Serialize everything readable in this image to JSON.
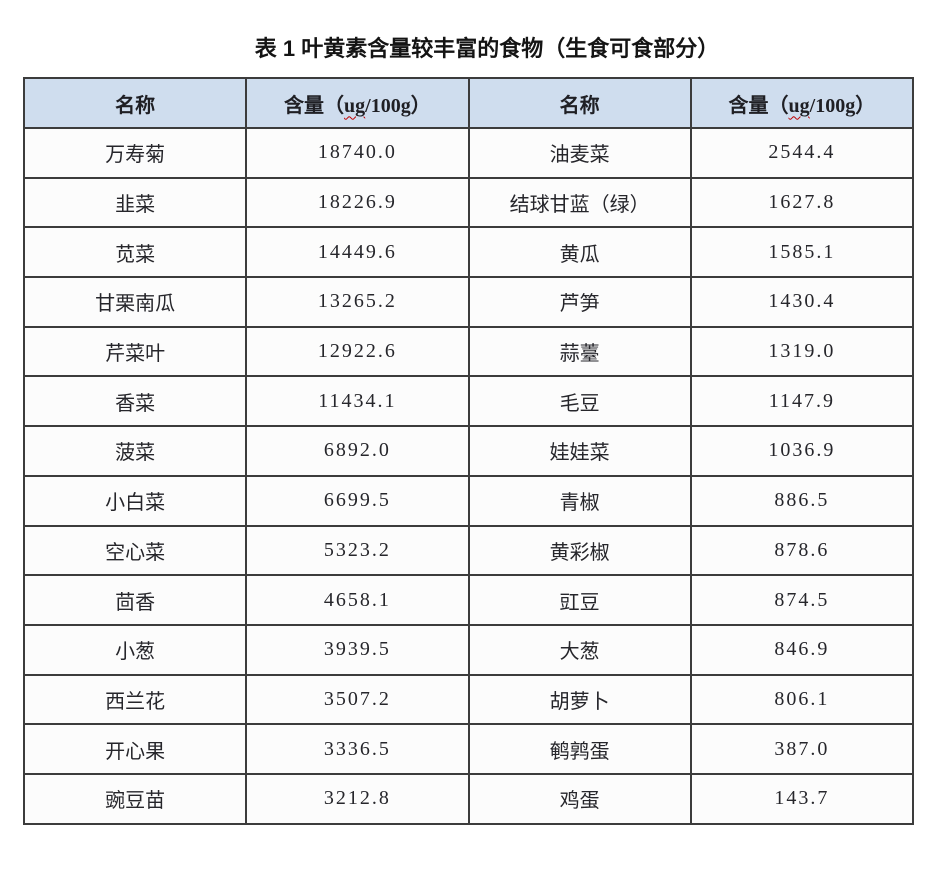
{
  "title": "表 1 叶黄素含量较丰富的食物（生食可食部分）",
  "colors": {
    "header_bg": "#cfddee",
    "cell_bg": "#fcfcfc",
    "border": "#3c3c3c",
    "title_text": "#141414",
    "cell_text": "#26262b",
    "squiggle_red": "#c00000"
  },
  "table": {
    "name_header": "名称",
    "content_header": {
      "prefix": "含量（",
      "unit": "ug",
      "suffix": "/100g）"
    },
    "rows": [
      [
        "万寿菊",
        "18740.0",
        "油麦菜",
        "2544.4"
      ],
      [
        "韭菜",
        "18226.9",
        "结球甘蓝（绿）",
        "1627.8"
      ],
      [
        "苋菜",
        "14449.6",
        "黄瓜",
        "1585.1"
      ],
      [
        "甘栗南瓜",
        "13265.2",
        "芦笋",
        "1430.4"
      ],
      [
        "芹菜叶",
        "12922.6",
        "蒜薹",
        "1319.0"
      ],
      [
        "香菜",
        "11434.1",
        "毛豆",
        "1147.9"
      ],
      [
        "菠菜",
        "6892.0",
        "娃娃菜",
        "1036.9"
      ],
      [
        "小白菜",
        "6699.5",
        "青椒",
        "886.5"
      ],
      [
        "空心菜",
        "5323.2",
        "黄彩椒",
        "878.6"
      ],
      [
        "茴香",
        "4658.1",
        "豇豆",
        "874.5"
      ],
      [
        "小葱",
        "3939.5",
        "大葱",
        "846.9"
      ],
      [
        "西兰花",
        "3507.2",
        "胡萝卜",
        "806.1"
      ],
      [
        "开心果",
        "3336.5",
        "鹌鹑蛋",
        "387.0"
      ],
      [
        "豌豆苗",
        "3212.8",
        "鸡蛋",
        "143.7"
      ]
    ]
  }
}
